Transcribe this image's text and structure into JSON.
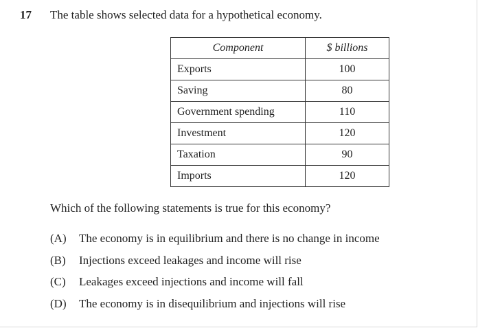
{
  "question": {
    "number": "17",
    "stem": "The table shows selected data for a hypothetical economy.",
    "prompt": "Which of the following statements is true for this economy?"
  },
  "table": {
    "headers": [
      "Component",
      "$ billions"
    ],
    "rows": [
      {
        "component": "Exports",
        "value": "100"
      },
      {
        "component": "Saving",
        "value": "80"
      },
      {
        "component": "Government spending",
        "value": "110"
      },
      {
        "component": "Investment",
        "value": "120"
      },
      {
        "component": "Taxation",
        "value": "90"
      },
      {
        "component": "Imports",
        "value": "120"
      }
    ]
  },
  "options": [
    {
      "letter": "(A)",
      "text": "The economy is in equilibrium and there is no change in income"
    },
    {
      "letter": "(B)",
      "text": "Injections exceed leakages and income will rise"
    },
    {
      "letter": "(C)",
      "text": "Leakages exceed injections and income will fall"
    },
    {
      "letter": "(D)",
      "text": "The economy is in disequilibrium and injections will rise"
    }
  ]
}
